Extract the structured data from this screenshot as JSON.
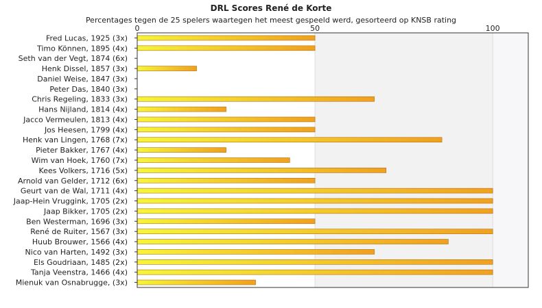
{
  "chart_data": {
    "type": "bar",
    "orientation": "horizontal",
    "title": "DRL Scores René de Korte",
    "subtitle": "Percentages tegen de 25 spelers waartegen het meest gespeeld werd, gesorteerd op KNSB rating",
    "xlim": [
      0,
      110
    ],
    "xticks": [
      0,
      50,
      100
    ],
    "grid": true,
    "categories": [
      "Fred Lucas, 1925 (3x)",
      "Timo Können, 1895 (4x)",
      "Seth van der Vegt, 1874 (6x)",
      "Henk Dissel, 1857 (3x)",
      "Daniel Weise, 1847 (3x)",
      "Peter Das, 1840 (3x)",
      "Chris Regeling, 1833 (3x)",
      "Hans Nijland, 1814 (4x)",
      "Jacco Vermeulen, 1813 (4x)",
      "Jos Heesen, 1799 (4x)",
      "Henk van Lingen, 1768 (7x)",
      "Pieter Bakker, 1767 (4x)",
      "Wim van Hoek, 1760 (7x)",
      "Kees Volkers, 1716 (5x)",
      "Arnold van Gelder, 1712 (6x)",
      "Geurt van de Wal, 1711 (4x)",
      "Jaap-Hein Vruggink, 1705 (2x)",
      "Jaap Bikker, 1705 (2x)",
      "Ben Westerman, 1696 (3x)",
      "René de Ruiter, 1567 (3x)",
      "Huub Brouwer, 1566 (4x)",
      "Nico van Harten, 1492 (3x)",
      "Els Goudriaan, 1485 (2x)",
      "Tanja Veenstra, 1466 (4x)",
      "Mienuk van Osnabrugge,  (3x)"
    ],
    "values": [
      50,
      50,
      0,
      16.7,
      0,
      0,
      66.7,
      25,
      50,
      50,
      85.7,
      25,
      42.9,
      70,
      50,
      100,
      100,
      100,
      50,
      100,
      87.5,
      66.7,
      100,
      100,
      33.3
    ],
    "colors": {
      "bar_start": "#f5f53a",
      "bar_end": "#f0a020",
      "bar_stroke": "#b07010",
      "plot_band_light": "#ffffff",
      "plot_band_mid": "#f2f2f2",
      "plot_band_high": "#f7f7fa",
      "axis": "#333333",
      "gridline": "#dddddd"
    }
  }
}
